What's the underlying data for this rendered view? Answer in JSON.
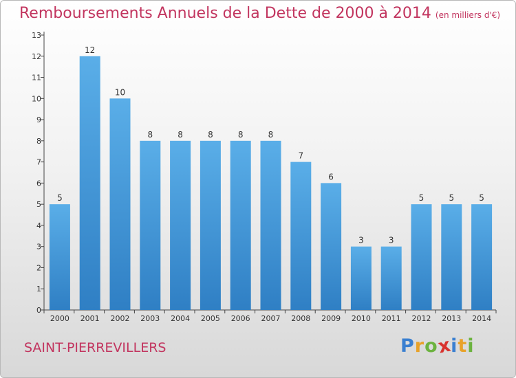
{
  "chart_data": {
    "type": "bar",
    "title": "Remboursements Annuels de la Dette de 2000 à 2014",
    "subtitle": "(en milliers d'€)",
    "categories": [
      "2000",
      "2001",
      "2002",
      "2003",
      "2004",
      "2005",
      "2006",
      "2007",
      "2008",
      "2009",
      "2010",
      "2011",
      "2012",
      "2013",
      "2014"
    ],
    "values": [
      5,
      12,
      10,
      8,
      8,
      8,
      8,
      8,
      7,
      6,
      3,
      3,
      5,
      5,
      5
    ],
    "ylim": [
      0,
      13
    ],
    "yticks": [
      0,
      1,
      2,
      3,
      4,
      5,
      6,
      7,
      8,
      9,
      10,
      11,
      12,
      13
    ],
    "grid": false,
    "data_labels": true,
    "bar_color": "#4a9ee0"
  },
  "footer": {
    "commune": "SAINT-PIERREVILLERS",
    "brand": "Proxiti",
    "brand_colors": [
      "#3a7fd0",
      "#e8a22a",
      "#6cb33f",
      "#d8322e",
      "#3a7fd0",
      "#e8a22a",
      "#6cb33f"
    ]
  }
}
